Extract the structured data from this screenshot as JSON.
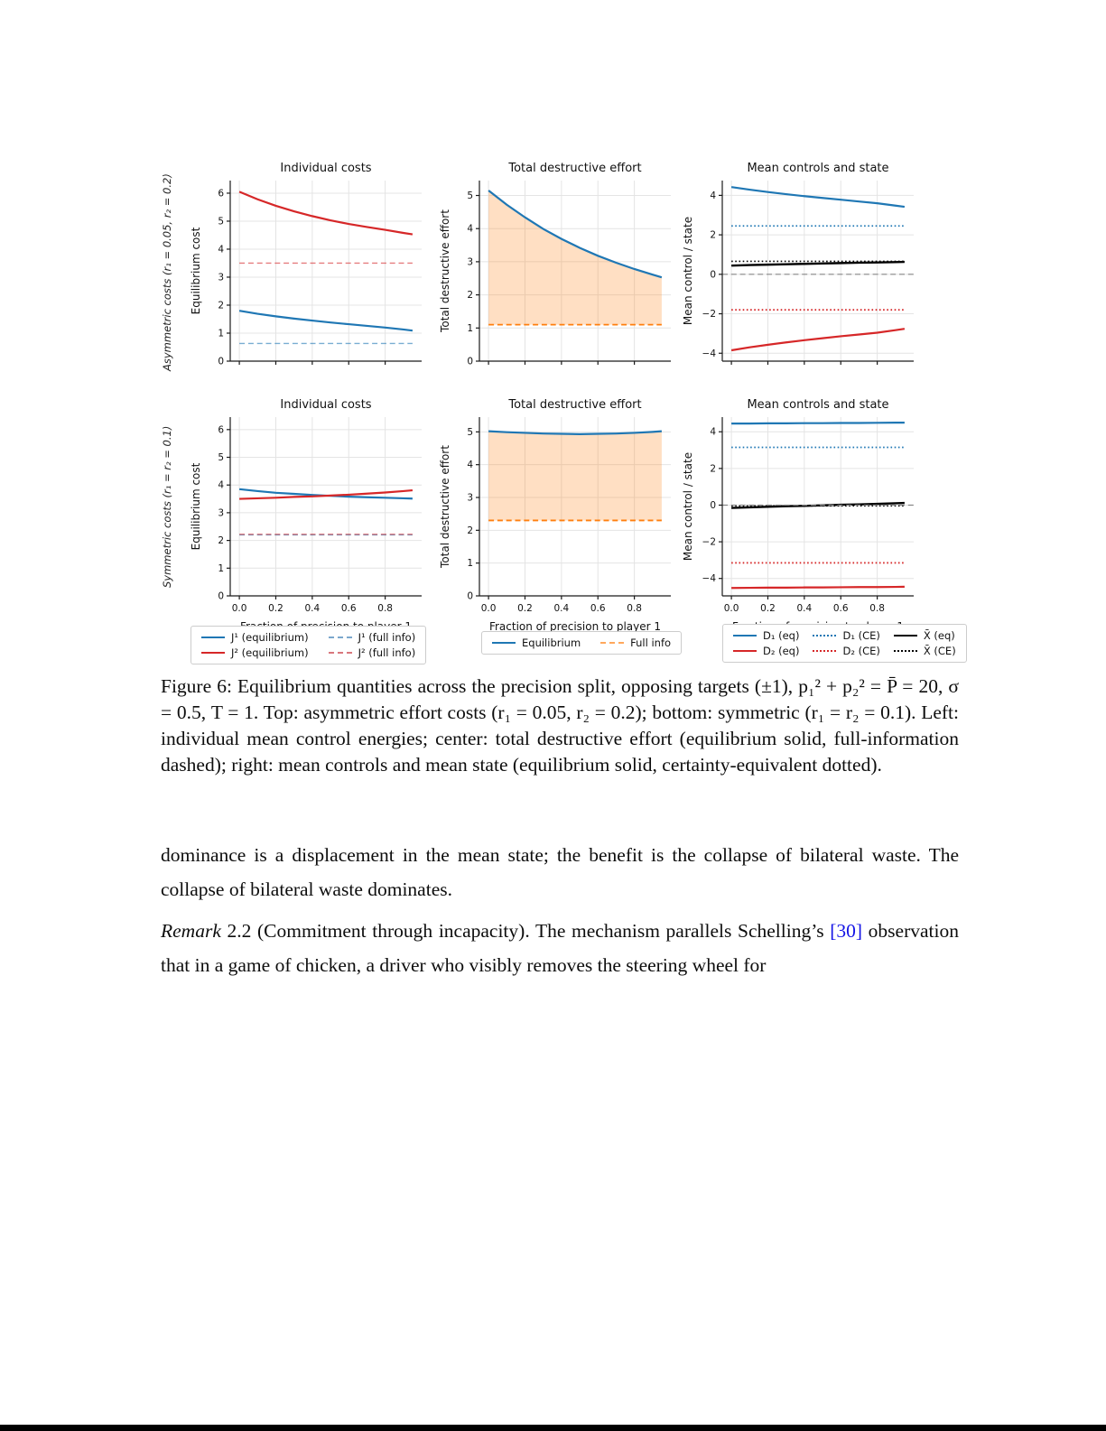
{
  "page": {
    "background": "#ffffff",
    "bottom_bar_color": "#000000"
  },
  "figure": {
    "row_labels": [
      "Asymmetric costs (r₁ = 0.05,  r₂ = 0.2)",
      "Symmetric costs (r₁ = r₂ = 0.1)"
    ],
    "legends": [
      {
        "columns": 2,
        "items": [
          {
            "label": "J¹ (equilibrium)",
            "color": "#1f77b4",
            "dash": "solid"
          },
          {
            "label": "J¹ (full info)",
            "color": "#7ba7cc",
            "dash": "dashed"
          },
          {
            "label": "J² (equilibrium)",
            "color": "#d62728",
            "dash": "solid"
          },
          {
            "label": "J² (full info)",
            "color": "#d9777c",
            "dash": "dashed"
          }
        ]
      },
      {
        "columns": 2,
        "items": [
          {
            "label": "Equilibrium",
            "color": "#1f77b4",
            "dash": "solid"
          },
          {
            "label": "Full info",
            "color": "#ffa85c",
            "dash": "dashed"
          }
        ]
      },
      {
        "columns": 3,
        "items": [
          {
            "label": "D₁ (eq)",
            "color": "#1f77b4",
            "dash": "solid"
          },
          {
            "label": "D₁ (CE)",
            "color": "#1f77b4",
            "dash": "dotted"
          },
          {
            "label": "X̄ (eq)",
            "color": "#000000",
            "dash": "solid"
          },
          {
            "label": "D₂ (eq)",
            "color": "#d62728",
            "dash": "solid"
          },
          {
            "label": "D₂ (CE)",
            "color": "#d62728",
            "dash": "dotted"
          },
          {
            "label": "X̄ (CE)",
            "color": "#000000",
            "dash": "dotted"
          }
        ]
      }
    ]
  },
  "chart_data": [
    {
      "type": "line",
      "title": "Individual costs",
      "ylabel": "Equilibrium cost",
      "xlabel": "",
      "show_x": false,
      "xlim": [
        -0.05,
        1.0
      ],
      "ylim": [
        0,
        6.45
      ],
      "xticks": [
        0,
        0.2,
        0.4,
        0.6,
        0.8
      ],
      "xtick_labels": [
        "0.0",
        "0.2",
        "0.4",
        "0.6",
        "0.8"
      ],
      "yticks": [
        0,
        1,
        2,
        3,
        4,
        5,
        6
      ],
      "ytick_labels": [
        "0",
        "1",
        "2",
        "3",
        "4",
        "5",
        "6"
      ],
      "x": [
        0,
        0.1,
        0.2,
        0.3,
        0.4,
        0.5,
        0.6,
        0.7,
        0.8,
        0.9,
        0.95
      ],
      "series": [
        {
          "name": "J² (equilibrium)",
          "color": "#d62728",
          "dash": "solid",
          "width": 2.2,
          "y": [
            6.05,
            5.78,
            5.55,
            5.35,
            5.18,
            5.03,
            4.9,
            4.79,
            4.69,
            4.58,
            4.53
          ]
        },
        {
          "name": "J¹ (equilibrium)",
          "color": "#1f77b4",
          "dash": "solid",
          "width": 2.2,
          "y": [
            1.8,
            1.69,
            1.6,
            1.52,
            1.45,
            1.38,
            1.32,
            1.26,
            1.2,
            1.13,
            1.09
          ]
        },
        {
          "name": "J² (full info)",
          "color": "#d62728",
          "dash": "dashed",
          "width": 1.4,
          "opacity": 0.6,
          "y": 3.5
        },
        {
          "name": "J¹ (full info)",
          "color": "#1f77b4",
          "dash": "dashed",
          "width": 1.4,
          "opacity": 0.6,
          "y": 0.63
        }
      ]
    },
    {
      "type": "line",
      "title": "Total destructive effort",
      "ylabel": "Total destructive effort",
      "xlabel": "",
      "show_x": false,
      "xlim": [
        -0.05,
        1.0
      ],
      "ylim": [
        0,
        5.45
      ],
      "xticks": [
        0,
        0.2,
        0.4,
        0.6,
        0.8
      ],
      "xtick_labels": [
        "0.0",
        "0.2",
        "0.4",
        "0.6",
        "0.8"
      ],
      "yticks": [
        0,
        1,
        2,
        3,
        4,
        5
      ],
      "ytick_labels": [
        "0",
        "1",
        "2",
        "3",
        "4",
        "5"
      ],
      "x": [
        0,
        0.1,
        0.2,
        0.3,
        0.4,
        0.5,
        0.6,
        0.7,
        0.8,
        0.9,
        0.95
      ],
      "series": [
        {
          "name": "Equilibrium",
          "color": "#1f77b4",
          "dash": "solid",
          "width": 2.2,
          "y": [
            5.15,
            4.72,
            4.34,
            3.99,
            3.69,
            3.42,
            3.18,
            2.97,
            2.78,
            2.61,
            2.53
          ]
        },
        {
          "name": "Full info",
          "color": "#ff7f0e",
          "dash": "dashed",
          "width": 1.8,
          "y": 1.1
        }
      ],
      "fill": {
        "upper": 0,
        "lower": 1,
        "color": "#ff7f0e",
        "opacity": 0.25
      }
    },
    {
      "type": "line",
      "title": "Mean controls and state",
      "ylabel": "Mean control / state",
      "xlabel": "",
      "show_x": false,
      "xlim": [
        -0.05,
        1.0
      ],
      "ylim": [
        -4.4,
        4.75
      ],
      "xticks": [
        0,
        0.2,
        0.4,
        0.6,
        0.8
      ],
      "xtick_labels": [
        "0.0",
        "0.2",
        "0.4",
        "0.6",
        "0.8"
      ],
      "yticks": [
        -4,
        -2,
        0,
        2,
        4
      ],
      "ytick_labels": [
        "−4",
        "−2",
        "0",
        "2",
        "4"
      ],
      "x": [
        0,
        0.1,
        0.2,
        0.3,
        0.4,
        0.5,
        0.6,
        0.7,
        0.8,
        0.9,
        0.95
      ],
      "series": [
        {
          "name": "D₁ (eq)",
          "color": "#1f77b4",
          "dash": "solid",
          "width": 2.2,
          "y": [
            4.42,
            4.29,
            4.17,
            4.06,
            3.96,
            3.87,
            3.78,
            3.69,
            3.6,
            3.48,
            3.42
          ]
        },
        {
          "name": "D₁ (CE)",
          "color": "#1f77b4",
          "dash": "dotted",
          "width": 1.8,
          "y": 2.45
        },
        {
          "name": "X̄ (eq)",
          "color": "#000000",
          "dash": "solid",
          "width": 2.4,
          "y": [
            0.44,
            0.47,
            0.49,
            0.51,
            0.53,
            0.55,
            0.57,
            0.59,
            0.6,
            0.62,
            0.63
          ]
        },
        {
          "name": "X̄ (CE)",
          "color": "#000000",
          "dash": "dotted",
          "width": 1.6,
          "y": 0.66
        },
        {
          "name": "zero reference",
          "color": "#888888",
          "dash": "dashed",
          "width": 1.2,
          "y": 0,
          "full_width": true
        },
        {
          "name": "D₂ (CE)",
          "color": "#d62728",
          "dash": "dotted",
          "width": 1.8,
          "y": -1.8
        },
        {
          "name": "D₂ (eq)",
          "color": "#d62728",
          "dash": "solid",
          "width": 2.2,
          "y": [
            -3.85,
            -3.7,
            -3.57,
            -3.45,
            -3.34,
            -3.24,
            -3.14,
            -3.05,
            -2.96,
            -2.83,
            -2.76
          ]
        }
      ]
    },
    {
      "type": "line",
      "title": "Individual costs",
      "ylabel": "Equilibrium cost",
      "xlabel": "Fraction of precision to player 1",
      "show_x": true,
      "xlim": [
        -0.05,
        1.0
      ],
      "ylim": [
        0,
        6.45
      ],
      "xticks": [
        0,
        0.2,
        0.4,
        0.6,
        0.8
      ],
      "xtick_labels": [
        "0.0",
        "0.2",
        "0.4",
        "0.6",
        "0.8"
      ],
      "yticks": [
        0,
        1,
        2,
        3,
        4,
        5,
        6
      ],
      "ytick_labels": [
        "0",
        "1",
        "2",
        "3",
        "4",
        "5",
        "6"
      ],
      "x": [
        0,
        0.1,
        0.2,
        0.3,
        0.4,
        0.5,
        0.6,
        0.7,
        0.8,
        0.9,
        0.95
      ],
      "series": [
        {
          "name": "J¹ (equilibrium)",
          "color": "#1f77b4",
          "dash": "solid",
          "width": 2.2,
          "y": [
            3.85,
            3.78,
            3.72,
            3.68,
            3.64,
            3.61,
            3.58,
            3.56,
            3.54,
            3.52,
            3.51
          ]
        },
        {
          "name": "J² (equilibrium)",
          "color": "#d62728",
          "dash": "solid",
          "width": 2.2,
          "y": [
            3.5,
            3.52,
            3.54,
            3.57,
            3.59,
            3.62,
            3.65,
            3.69,
            3.73,
            3.78,
            3.81
          ]
        },
        {
          "name": "J¹ (full info)",
          "color": "#1f77b4",
          "dash": "dashed",
          "width": 1.4,
          "opacity": 0.6,
          "y": 2.2
        },
        {
          "name": "J² (full info)",
          "color": "#d62728",
          "dash": "dashed",
          "width": 1.4,
          "opacity": 0.6,
          "y": 2.22
        }
      ]
    },
    {
      "type": "line",
      "title": "Total destructive effort",
      "ylabel": "Total destructive effort",
      "xlabel": "Fraction of precision to player 1",
      "show_x": true,
      "xlim": [
        -0.05,
        1.0
      ],
      "ylim": [
        0,
        5.45
      ],
      "xticks": [
        0,
        0.2,
        0.4,
        0.6,
        0.8
      ],
      "xtick_labels": [
        "0.0",
        "0.2",
        "0.4",
        "0.6",
        "0.8"
      ],
      "yticks": [
        0,
        1,
        2,
        3,
        4,
        5
      ],
      "ytick_labels": [
        "0",
        "1",
        "2",
        "3",
        "4",
        "5"
      ],
      "x": [
        0,
        0.1,
        0.2,
        0.3,
        0.4,
        0.5,
        0.6,
        0.7,
        0.8,
        0.9,
        0.95
      ],
      "series": [
        {
          "name": "Equilibrium",
          "color": "#1f77b4",
          "dash": "solid",
          "width": 2.2,
          "y": [
            5.02,
            4.99,
            4.97,
            4.95,
            4.94,
            4.93,
            4.94,
            4.95,
            4.97,
            5.0,
            5.02
          ]
        },
        {
          "name": "Full info",
          "color": "#ff7f0e",
          "dash": "dashed",
          "width": 1.8,
          "y": 2.3
        }
      ],
      "fill": {
        "upper": 0,
        "lower": 1,
        "color": "#ff7f0e",
        "opacity": 0.25
      }
    },
    {
      "type": "line",
      "title": "Mean controls and state",
      "ylabel": "Mean control / state",
      "xlabel": "Fraction of precision to player 1",
      "show_x": true,
      "xlim": [
        -0.05,
        1.0
      ],
      "ylim": [
        -4.95,
        4.8
      ],
      "xticks": [
        0,
        0.2,
        0.4,
        0.6,
        0.8
      ],
      "xtick_labels": [
        "0.0",
        "0.2",
        "0.4",
        "0.6",
        "0.8"
      ],
      "yticks": [
        -4,
        -2,
        0,
        2,
        4
      ],
      "ytick_labels": [
        "−4",
        "−2",
        "0",
        "2",
        "4"
      ],
      "x": [
        0,
        0.1,
        0.2,
        0.3,
        0.4,
        0.5,
        0.6,
        0.7,
        0.8,
        0.9,
        0.95
      ],
      "series": [
        {
          "name": "D₁ (eq)",
          "color": "#1f77b4",
          "dash": "solid",
          "width": 2.2,
          "y": [
            4.45,
            4.45,
            4.46,
            4.46,
            4.47,
            4.47,
            4.48,
            4.48,
            4.49,
            4.5,
            4.5
          ]
        },
        {
          "name": "D₁ (CE)",
          "color": "#1f77b4",
          "dash": "dotted",
          "width": 1.8,
          "y": 3.15
        },
        {
          "name": "X̄ (eq)",
          "color": "#000000",
          "dash": "solid",
          "width": 2.4,
          "y": [
            -0.15,
            -0.12,
            -0.09,
            -0.06,
            -0.04,
            -0.01,
            0.02,
            0.04,
            0.07,
            0.1,
            0.12
          ]
        },
        {
          "name": "X̄ (CE)",
          "color": "#000000",
          "dash": "dotted",
          "width": 1.6,
          "y": -0.04
        },
        {
          "name": "zero reference",
          "color": "#888888",
          "dash": "dashed",
          "width": 1.2,
          "y": 0,
          "full_width": true
        },
        {
          "name": "D₂ (CE)",
          "color": "#d62728",
          "dash": "dotted",
          "width": 1.8,
          "y": -3.15
        },
        {
          "name": "D₂ (eq)",
          "color": "#d62728",
          "dash": "solid",
          "width": 2.2,
          "y": [
            -4.52,
            -4.51,
            -4.5,
            -4.5,
            -4.49,
            -4.49,
            -4.48,
            -4.47,
            -4.47,
            -4.46,
            -4.45
          ]
        }
      ]
    }
  ],
  "caption": {
    "text": "Figure 6:  Equilibrium quantities across the precision split, opposing targets (±1), p₁² + p₂² = P̄ = 20, σ = 0.5, T = 1.  Top: asymmetric effort costs (r₁ = 0.05, r₂ = 0.2); bottom: symmetric (r₁ = r₂ = 0.1).  Left: individual mean control energies; center: total destructive effort (equilibrium solid, full-information dashed); right: mean controls and mean state (equilibrium solid, certainty-equivalent dotted)."
  },
  "body": {
    "paragraph1": "dominance is a displacement in the mean state; the benefit is the collapse of bilateral waste.  The collapse of bilateral waste dominates.",
    "remark_word": "Remark",
    "remark_before_citation": " 2.2 (Commitment through incapacity).  The mechanism parallels Schelling’s ",
    "citation": "[30]",
    "remark_after_citation": " observation that in a game of chicken, a driver who visibly removes the steering wheel for"
  }
}
